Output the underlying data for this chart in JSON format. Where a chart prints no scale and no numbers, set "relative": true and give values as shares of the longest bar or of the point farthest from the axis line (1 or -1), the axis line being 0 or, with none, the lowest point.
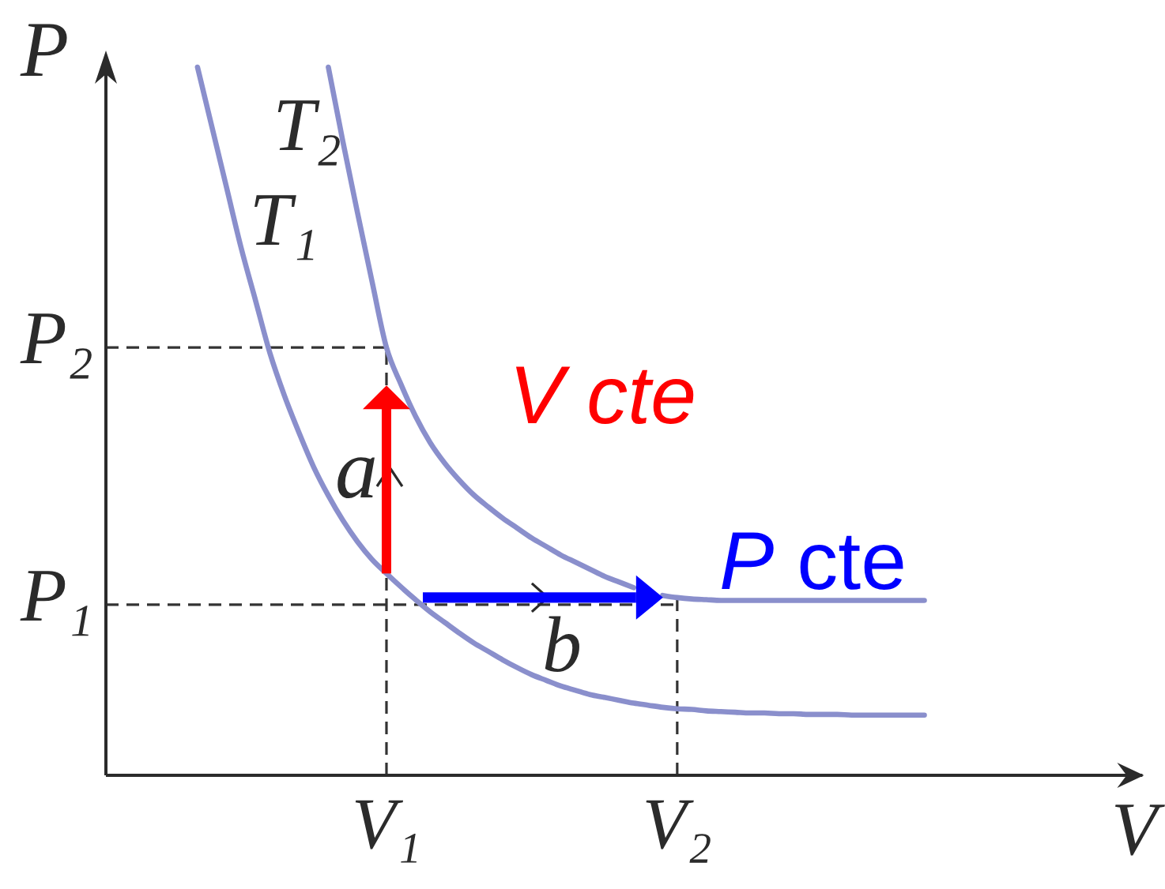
{
  "chart_data": {
    "type": "line",
    "relative": true,
    "xlabel": "V",
    "ylabel": "P",
    "categories": [
      null,
      null,
      null,
      null,
      null,
      null,
      null,
      null,
      null,
      null,
      null,
      null,
      null,
      null,
      null,
      null,
      null,
      null,
      "V₁",
      null,
      null,
      null,
      null,
      null,
      null,
      null,
      null,
      null,
      null,
      null,
      null,
      null,
      null,
      null,
      null,
      null,
      null,
      null,
      "V₂",
      null,
      null,
      null,
      null,
      null,
      null,
      null,
      null,
      null,
      null,
      null,
      null,
      null,
      null,
      null,
      null,
      null
    ],
    "series": [
      {
        "name": "T₁",
        "color": "#8a8fcc",
        "values": [
          null,
          null,
          null,
          null,
          null,
          1.0,
          0.915,
          0.83,
          0.745,
          0.67,
          0.595,
          0.535,
          0.483,
          0.435,
          0.395,
          0.36,
          0.33,
          0.305,
          0.285,
          0.266,
          0.248,
          0.231,
          0.216,
          0.201,
          0.187,
          0.175,
          0.163,
          0.152,
          0.142,
          0.134,
          0.126,
          0.12,
          0.114,
          0.11,
          0.106,
          0.102,
          0.099,
          0.096,
          0.094,
          0.093,
          0.091,
          0.09,
          0.089,
          0.088,
          0.088,
          0.087,
          0.087,
          0.086,
          0.086,
          0.086,
          0.085,
          0.085,
          0.085,
          0.085,
          0.085,
          0.085
        ]
      },
      {
        "name": "T₂",
        "color": "#8a8fcc",
        "values": [
          null,
          null,
          null,
          null,
          null,
          null,
          null,
          null,
          null,
          null,
          null,
          null,
          null,
          null,
          1.0,
          0.895,
          0.795,
          0.698,
          0.604,
          0.552,
          0.507,
          0.47,
          0.441,
          0.417,
          0.396,
          0.379,
          0.363,
          0.349,
          0.335,
          0.323,
          0.311,
          0.301,
          0.291,
          0.281,
          0.273,
          0.265,
          null,
          0.254,
          0.251,
          0.249,
          0.248,
          0.247,
          0.247,
          0.247,
          0.247,
          0.247,
          0.247,
          0.247,
          0.247,
          0.247,
          0.247,
          0.247,
          0.247,
          0.247,
          0.247,
          0.247
        ]
      }
    ],
    "ref_lines": [
      {
        "axis": "y",
        "value": 0.241,
        "label": "P₁",
        "color": "#333333",
        "line_style": "dashed"
      },
      {
        "axis": "y",
        "value": 0.604,
        "label": "P₂",
        "color": "#333333",
        "line_style": "dashed"
      },
      {
        "axis": "x",
        "value": "V₁",
        "color": "#333333",
        "line_style": "dashed"
      },
      {
        "axis": "x",
        "value": "V₂",
        "color": "#333333",
        "line_style": "dashed"
      }
    ],
    "annotations": [
      "V cte",
      "P cte",
      "a",
      "b"
    ]
  }
}
